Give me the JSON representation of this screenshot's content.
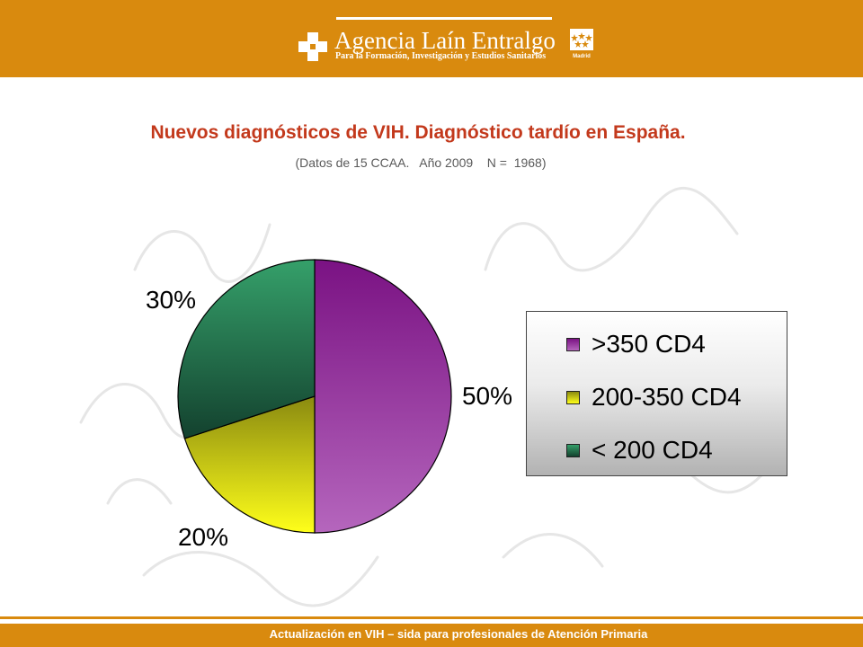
{
  "header": {
    "brand_name": "Agencia Laín Entralgo",
    "brand_tagline": "Para la Formación, Investigación y Estudios Sanitarios",
    "madrid_label": "Madrid",
    "colors": {
      "bar": "#d98a0e",
      "text": "#ffffff"
    }
  },
  "slide": {
    "title": "Nuevos diagnósticos de VIH. Diagnóstico tardío en España.",
    "subtitle": "(Datos de 15 CCAA.   Año 2009    N =  1968)"
  },
  "chart_data": {
    "type": "pie",
    "title": "",
    "slices": [
      {
        "name": ">350 CD4",
        "value": 50,
        "label": "50%",
        "color": "#9b4aa8"
      },
      {
        "name": "200-350 CD4",
        "value": 20,
        "label": "20%",
        "color": "#e6e619"
      },
      {
        "name": "< 200 CD4",
        "value": 30,
        "label": "30%",
        "color": "#2f7f58"
      }
    ],
    "start_direction": "12 o'clock",
    "direction": "clockwise",
    "legend_position": "right"
  },
  "footer": {
    "text": "Actualización en VIH – sida para profesionales de Atención Primaria"
  }
}
